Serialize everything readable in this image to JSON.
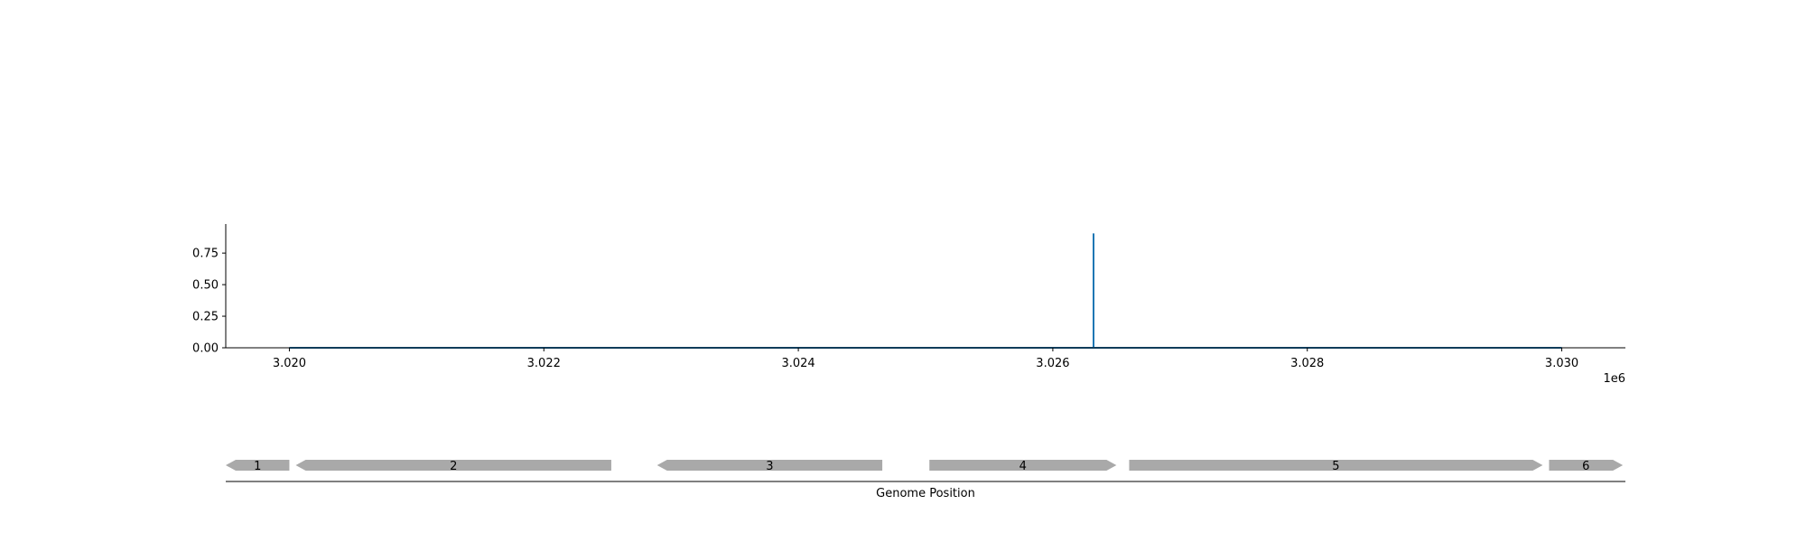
{
  "chart_data": [
    {
      "type": "line",
      "title": "",
      "xlabel": "",
      "ylabel": "",
      "x_offset_label": "1e6",
      "xlim": [
        3019500,
        3030500
      ],
      "ylim": [
        0,
        0.98
      ],
      "x_ticks": [
        3020000,
        3022000,
        3024000,
        3026000,
        3028000,
        3030000
      ],
      "x_tick_labels": [
        "3.020",
        "3.022",
        "3.024",
        "3.026",
        "3.028",
        "3.030"
      ],
      "y_ticks": [
        0,
        0.25,
        0.5,
        0.75
      ],
      "y_tick_labels": [
        "0.00",
        "0.25",
        "0.50",
        "0.75"
      ],
      "grid": false,
      "color": "#1f77b4",
      "series": [
        {
          "x": [
            3020000,
            3026320,
            3026320,
            3026320,
            3030000
          ],
          "y": [
            0,
            0,
            0.9,
            0,
            0
          ]
        }
      ]
    },
    {
      "type": "gene_track",
      "xlabel": "Genome Position",
      "color": "#a9a9a9",
      "genes": [
        {
          "label": "1",
          "start": 3019500,
          "end": 3020000,
          "strand": "-"
        },
        {
          "label": "2",
          "start": 3020050,
          "end": 3022530,
          "strand": "-"
        },
        {
          "label": "3",
          "start": 3022890,
          "end": 3024660,
          "strand": "-"
        },
        {
          "label": "4",
          "start": 3025030,
          "end": 3026500,
          "strand": "+"
        },
        {
          "label": "5",
          "start": 3026600,
          "end": 3029850,
          "strand": "+"
        },
        {
          "label": "6",
          "start": 3029900,
          "end": 3030480,
          "strand": "+"
        }
      ]
    }
  ]
}
